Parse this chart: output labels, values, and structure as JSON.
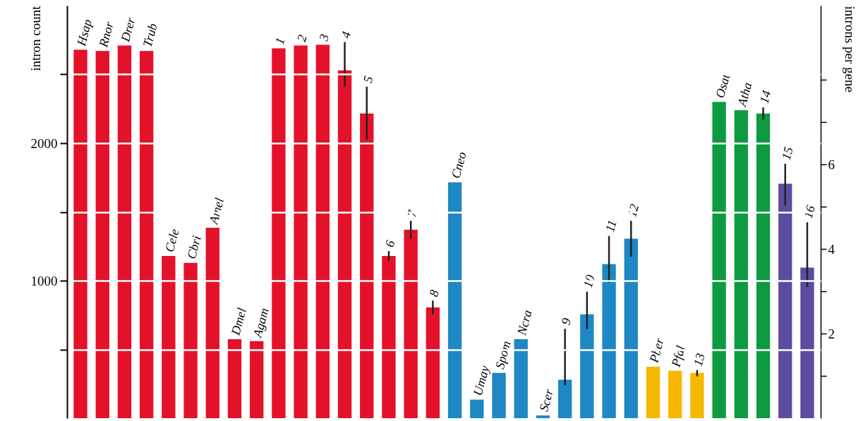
{
  "chart_data": {
    "type": "bar",
    "categories": [
      "Hsap",
      "Rnor",
      "Drer",
      "Trub",
      "Cele",
      "Cbri",
      "Amel",
      "Dmel",
      "Agam",
      "1",
      "2",
      "3",
      "4",
      "5",
      "6",
      "7",
      "8",
      "Cneo",
      "Umay",
      "Spom",
      "Ncra",
      "Scer",
      "9",
      "10",
      "11",
      "12",
      "Pber",
      "Pfal",
      "13",
      "Osat",
      "Atha",
      "14",
      "15",
      "16"
    ],
    "values": [
      2680,
      2670,
      2710,
      2670,
      1180,
      1130,
      1385,
      575,
      560,
      2690,
      2710,
      2715,
      2530,
      2215,
      1180,
      1370,
      805,
      1715,
      135,
      330,
      575,
      20,
      280,
      755,
      1120,
      1305,
      375,
      345,
      330,
      2300,
      2240,
      2215,
      1705,
      1095
    ],
    "errors": [
      null,
      null,
      null,
      null,
      null,
      null,
      null,
      null,
      null,
      null,
      null,
      null,
      [
        2410,
        2735
      ],
      [
        2025,
        2410
      ],
      [
        1145,
        1215
      ],
      [
        1305,
        1435
      ],
      [
        755,
        855
      ],
      null,
      null,
      null,
      null,
      null,
      [
        240,
        650
      ],
      [
        650,
        920
      ],
      [
        985,
        1325
      ],
      [
        1175,
        1435
      ],
      null,
      null,
      [
        305,
        350
      ],
      null,
      null,
      [
        2170,
        2260
      ],
      [
        1545,
        1850
      ],
      [
        955,
        1425
      ]
    ],
    "colors": [
      "#e4112a",
      "#e4112a",
      "#e4112a",
      "#e4112a",
      "#e4112a",
      "#e4112a",
      "#e4112a",
      "#e4112a",
      "#e4112a",
      "#e4112a",
      "#e4112a",
      "#e4112a",
      "#e4112a",
      "#e4112a",
      "#e4112a",
      "#e4112a",
      "#e4112a",
      "#1f87c4",
      "#1f87c4",
      "#1f87c4",
      "#1f87c4",
      "#1f87c4",
      "#1f87c4",
      "#1f87c4",
      "#1f87c4",
      "#1f87c4",
      "#f6b800",
      "#f6b800",
      "#f6b800",
      "#0d9a40",
      "#0d9a40",
      "#0d9a40",
      "#5c4b9e",
      "#5c4b9e"
    ],
    "ylabel": "intron count",
    "y2label": "introns per gene",
    "ylim": [
      0,
      3000
    ],
    "yticks": [
      {
        "value": 500,
        "label": null
      },
      1000,
      {
        "value": 1500,
        "label": null
      },
      2000,
      {
        "value": 2500,
        "label": null
      }
    ],
    "y2lim": [
      0,
      9.75
    ],
    "y2ticks": [
      {
        "value": 1,
        "label": null
      },
      2,
      {
        "value": 3,
        "label": null
      },
      4,
      {
        "value": 5,
        "label": null
      },
      6,
      {
        "value": 7,
        "label": null
      },
      {
        "value": 8,
        "label": null
      }
    ],
    "grid": "y"
  }
}
